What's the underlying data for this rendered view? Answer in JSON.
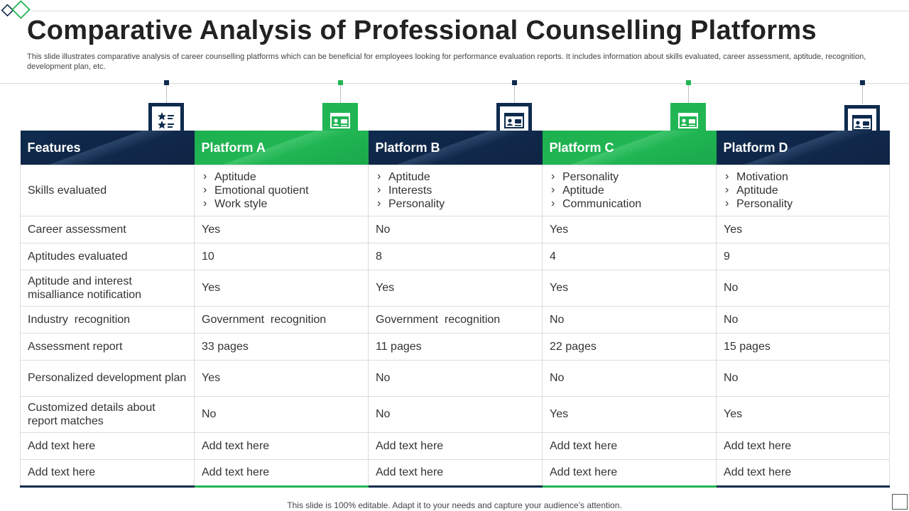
{
  "slide": {
    "title": "Comparative Analysis of Professional Counselling Platforms",
    "subtitle": "This slide illustrates comparative analysis of career counselling platforms which can be beneficial for employees looking for performance evaluation reports. It includes information about skills evaluated, career assessment, aptitude, recognition, development plan, etc.",
    "footer": "This slide is 100% editable. Adapt it to your needs and capture your audience’s attention."
  },
  "colors": {
    "navy": "#0e2b4d",
    "green": "#21b554"
  },
  "icons": [
    "star-rating-icon",
    "id-card-icon",
    "id-card-icon",
    "id-card-icon",
    "id-card-icon"
  ],
  "table": {
    "headers": [
      "Features",
      "Platform A",
      "Platform B",
      "Platform C",
      "Platform D"
    ],
    "skills_row": {
      "label": "Skills evaluated",
      "cells": [
        [
          "Aptitude",
          "Emotional quotient",
          "Work style"
        ],
        [
          "Aptitude",
          "Interests",
          "Personality"
        ],
        [
          "Personality",
          "Aptitude",
          "Communication"
        ],
        [
          "Motivation",
          "Aptitude",
          "Personality"
        ]
      ]
    },
    "rows": [
      [
        "Career assessment",
        "Yes",
        "No",
        "Yes",
        "Yes"
      ],
      [
        "Aptitudes evaluated",
        "10",
        "8",
        "4",
        "9"
      ],
      [
        "Aptitude and interest misalliance notification",
        "Yes",
        "Yes",
        "Yes",
        "No"
      ],
      [
        "Industry  recognition",
        "Government  recognition",
        "Government  recognition",
        "No",
        "No"
      ],
      [
        "Assessment report",
        "33 pages",
        "11 pages",
        "22 pages",
        "15 pages"
      ],
      [
        "Personalized development plan",
        "Yes",
        "No",
        "No",
        "No"
      ],
      [
        "Customized details about report matches",
        "No",
        "No",
        "Yes",
        "Yes"
      ],
      [
        "Add text here",
        "Add text here",
        "Add text here",
        "Add text here",
        "Add text here"
      ],
      [
        "Add text here",
        "Add text here",
        "Add text here",
        "Add text here",
        "Add text here"
      ]
    ]
  }
}
